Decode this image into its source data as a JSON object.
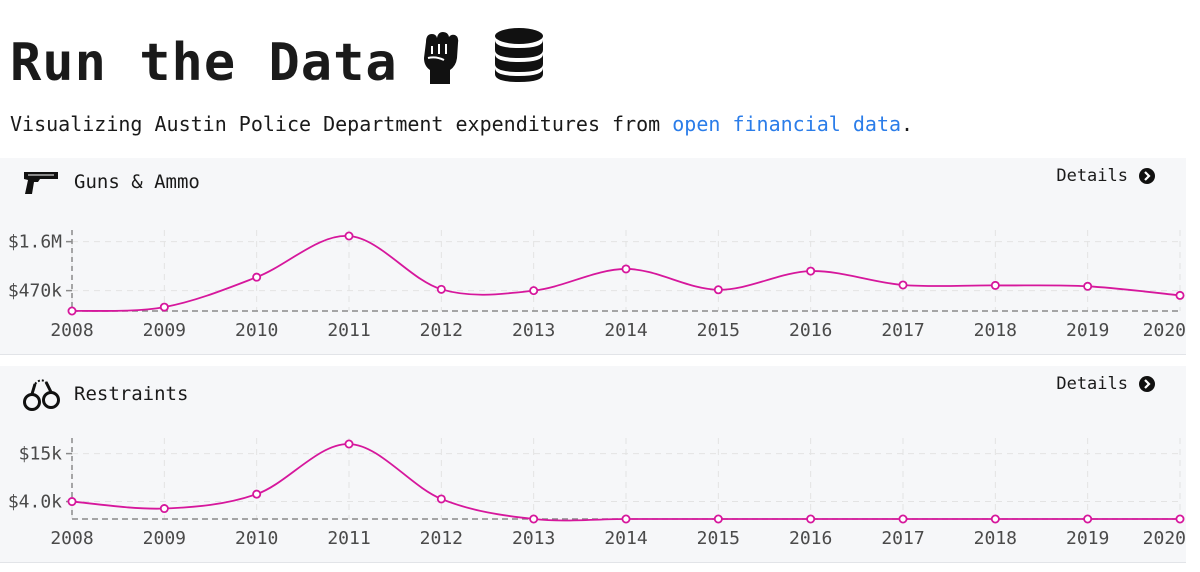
{
  "header": {
    "title": "Run the Data",
    "subtitle_prefix": "Visualizing Austin Police Department expenditures from ",
    "subtitle_link": "open financial data",
    "subtitle_suffix": ".",
    "icons": [
      "raised-fist-icon",
      "database-icon"
    ]
  },
  "colors": {
    "line": "#d6179c",
    "grid": "#e3e3e3",
    "axis": "#8a8a8a",
    "link": "#2b7de9"
  },
  "panels": [
    {
      "name": "Guns & Ammo",
      "icon": "pistol-icon",
      "details_label": "Details"
    },
    {
      "name": "Restraints",
      "icon": "handcuffs-icon",
      "details_label": "Details"
    }
  ],
  "chart_data": [
    {
      "type": "line",
      "title": "Guns & Ammo",
      "x": [
        "2008",
        "2009",
        "2010",
        "2011",
        "2012",
        "2013",
        "2014",
        "2015",
        "2016",
        "2017",
        "2018",
        "2019",
        "2020"
      ],
      "series": [
        {
          "values": [
            0,
            90000,
            780000,
            1730000,
            500000,
            470000,
            970000,
            490000,
            920000,
            600000,
            590000,
            570000,
            360000
          ]
        }
      ],
      "yticks": [
        470000,
        1600000
      ],
      "ytick_labels": [
        "$470k",
        "$1.6M"
      ],
      "ylim": [
        0,
        1730000
      ],
      "grid": true
    },
    {
      "type": "line",
      "title": "Restraints",
      "x": [
        "2008",
        "2009",
        "2010",
        "2011",
        "2012",
        "2013",
        "2014",
        "2015",
        "2016",
        "2017",
        "2018",
        "2019",
        "2020"
      ],
      "series": [
        {
          "values": [
            4000,
            2400,
            5700,
            17200,
            4600,
            0,
            0,
            0,
            0,
            0,
            0,
            0,
            0
          ]
        }
      ],
      "yticks": [
        4000,
        15000
      ],
      "ytick_labels": [
        "$4.0k",
        "$15k"
      ],
      "ylim": [
        0,
        17200
      ],
      "grid": true
    }
  ]
}
